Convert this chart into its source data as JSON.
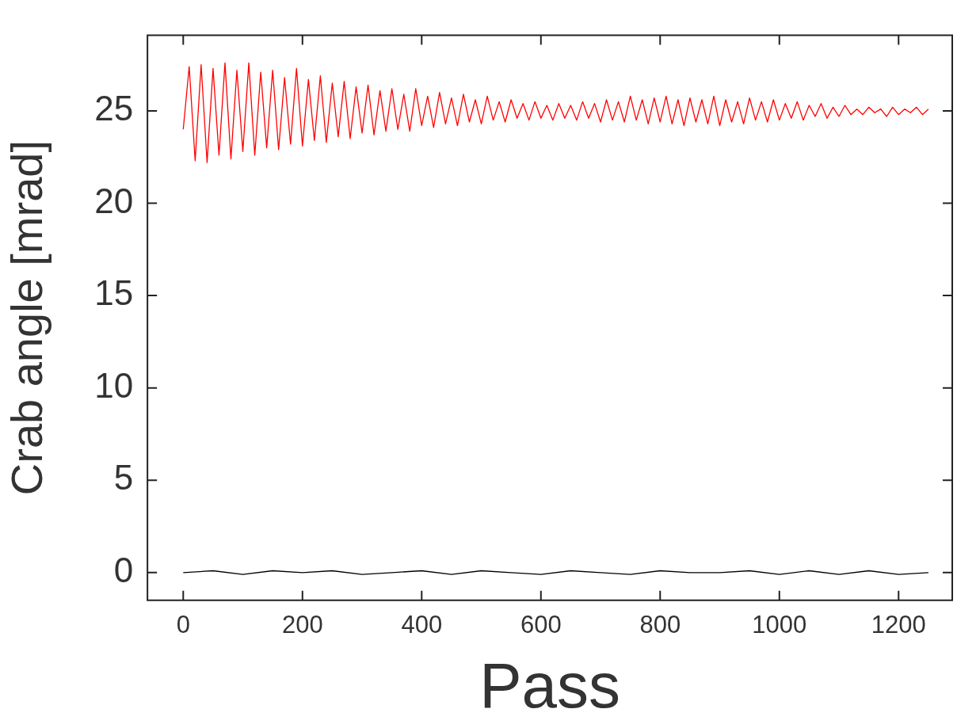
{
  "chart_data": {
    "type": "line",
    "xlabel": "Pass",
    "ylabel": "Crab angle [mrad]",
    "xlim": [
      -60,
      1290
    ],
    "xticks": [
      0,
      200,
      400,
      600,
      800,
      1000,
      1200
    ],
    "ylim": [
      -1.5,
      29.1
    ],
    "yticks": [
      0,
      5,
      10,
      15,
      20,
      25
    ],
    "marker": "none",
    "line_style": "solid",
    "legend": false,
    "series": [
      {
        "color": "#ff0000",
        "x": [
          0,
          10,
          20,
          30,
          40,
          50,
          60,
          70,
          80,
          90,
          100,
          110,
          120,
          130,
          140,
          150,
          160,
          170,
          180,
          190,
          200,
          210,
          220,
          230,
          240,
          250,
          260,
          270,
          280,
          290,
          300,
          310,
          320,
          330,
          340,
          350,
          360,
          370,
          380,
          390,
          400,
          410,
          420,
          430,
          440,
          450,
          460,
          470,
          480,
          490,
          500,
          510,
          520,
          530,
          540,
          550,
          560,
          570,
          580,
          590,
          600,
          610,
          620,
          630,
          640,
          650,
          660,
          670,
          680,
          690,
          700,
          710,
          720,
          730,
          740,
          750,
          760,
          770,
          780,
          790,
          800,
          810,
          820,
          830,
          840,
          850,
          860,
          870,
          880,
          890,
          900,
          910,
          920,
          930,
          940,
          950,
          960,
          970,
          980,
          990,
          1000,
          1010,
          1020,
          1030,
          1040,
          1050,
          1060,
          1070,
          1080,
          1090,
          1100,
          1110,
          1120,
          1130,
          1140,
          1150,
          1160,
          1170,
          1180,
          1190,
          1200,
          1210,
          1220,
          1230,
          1240,
          1250
        ],
        "values": [
          24,
          27.4,
          22.3,
          27.5,
          22.2,
          27.3,
          22.6,
          27.6,
          22.4,
          27.2,
          22.8,
          27.6,
          22.6,
          27.1,
          23.0,
          27.2,
          22.9,
          26.8,
          23.2,
          27.3,
          23.1,
          26.7,
          23.4,
          26.9,
          23.3,
          26.5,
          23.6,
          26.6,
          23.5,
          26.3,
          23.8,
          26.4,
          23.7,
          26.1,
          23.9,
          26.2,
          24.0,
          25.9,
          23.9,
          26.2,
          24.2,
          25.8,
          24.1,
          26.0,
          24.3,
          25.7,
          24.2,
          25.9,
          24.4,
          25.6,
          24.3,
          25.8,
          24.5,
          25.5,
          24.4,
          25.6,
          24.6,
          25.4,
          24.5,
          25.5,
          24.6,
          25.3,
          24.5,
          25.4,
          24.6,
          25.3,
          24.5,
          25.5,
          24.6,
          25.4,
          24.4,
          25.6,
          24.5,
          25.5,
          24.4,
          25.8,
          24.5,
          25.6,
          24.3,
          25.7,
          24.4,
          25.8,
          24.3,
          25.6,
          24.2,
          25.7,
          24.4,
          25.6,
          24.3,
          25.8,
          24.2,
          25.6,
          24.4,
          25.5,
          24.3,
          25.7,
          24.5,
          25.5,
          24.4,
          25.6,
          24.5,
          25.4,
          24.6,
          25.5,
          24.5,
          25.3,
          24.7,
          25.4,
          24.6,
          25.2,
          24.7,
          25.3,
          24.8,
          25.1,
          24.8,
          25.2,
          24.9,
          25.1,
          24.7,
          25.2,
          24.8,
          25.1,
          24.9,
          25.2,
          24.8,
          25.1
        ]
      },
      {
        "color": "#000000",
        "x": [
          0,
          50,
          100,
          150,
          200,
          250,
          300,
          350,
          400,
          450,
          500,
          550,
          600,
          650,
          700,
          750,
          800,
          850,
          900,
          950,
          1000,
          1050,
          1100,
          1150,
          1200,
          1250
        ],
        "values": [
          0,
          0.1,
          -0.1,
          0.1,
          0,
          0.1,
          -0.1,
          0,
          0.1,
          -0.1,
          0.1,
          0,
          -0.1,
          0.1,
          0,
          -0.1,
          0.1,
          0,
          0,
          0.1,
          -0.1,
          0.1,
          -0.1,
          0.1,
          -0.1,
          0
        ]
      }
    ]
  }
}
